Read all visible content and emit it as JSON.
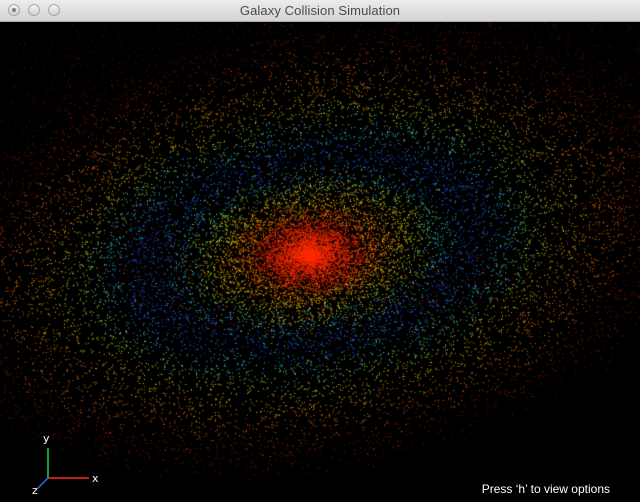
{
  "window": {
    "title": "Galaxy Collision Simulation"
  },
  "titlebar": {
    "buttons": [
      {
        "icon": "close-button-icon"
      },
      {
        "icon": "minimize-button-icon"
      },
      {
        "icon": "zoom-button-icon"
      }
    ]
  },
  "viewport": {
    "background": "#000000",
    "particle_palette": [
      "#ff2a00",
      "#ff7a00",
      "#ffd000",
      "#9cff3a",
      "#2bd0ff",
      "#1f58ff",
      "#0b1fa8"
    ]
  },
  "axes": {
    "x_label": "x",
    "y_label": "y",
    "z_label": "z",
    "x_color": "#ff2a2a",
    "y_color": "#19d95a",
    "z_color": "#2b6cff"
  },
  "hint": "Press ‘h’ to view options"
}
